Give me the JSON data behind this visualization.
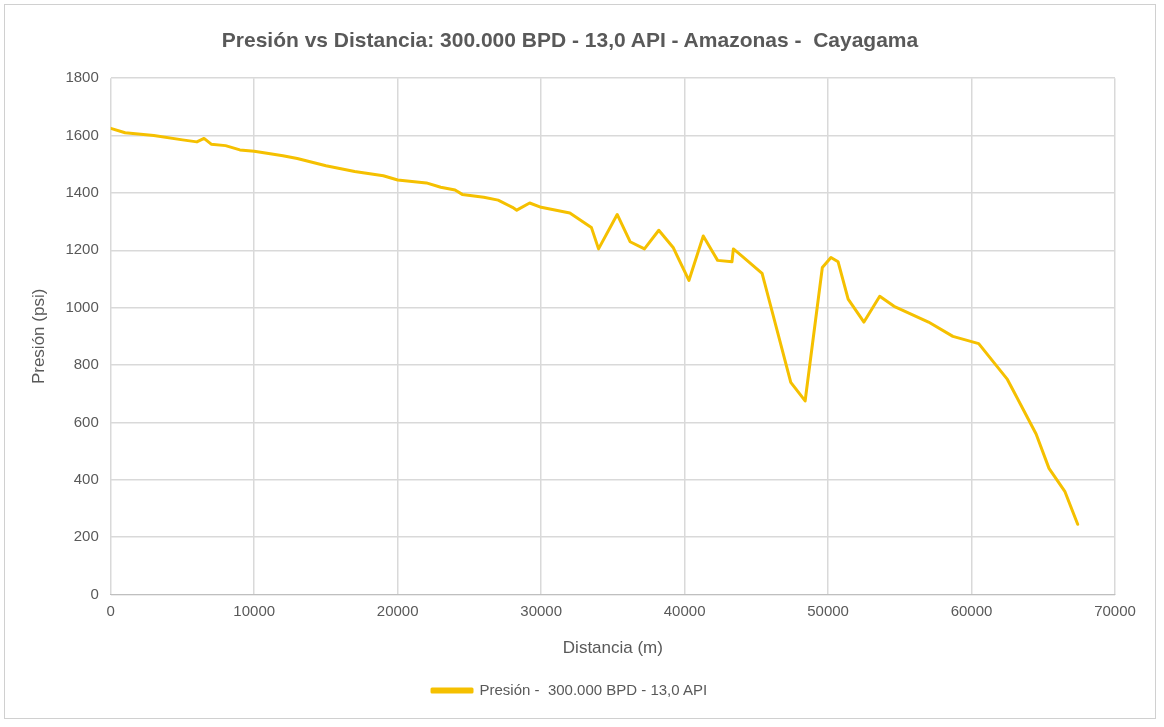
{
  "chart_data": {
    "type": "line",
    "title": "Presión vs Distancia: 300.000 BPD - 13,0 API - Amazonas -  Cayagama",
    "xlabel": "Distancia (m)",
    "ylabel": "Presión (psi)",
    "x": [
      0,
      1000,
      3000,
      5000,
      6000,
      6500,
      7000,
      8000,
      9000,
      10000,
      12000,
      13000,
      15000,
      17000,
      19000,
      20000,
      22000,
      23000,
      24000,
      24500,
      26000,
      27000,
      28000,
      28300,
      29200,
      30000,
      32000,
      33500,
      34000,
      35300,
      36200,
      37200,
      38200,
      39200,
      40300,
      41300,
      42300,
      43300,
      43400,
      44000,
      45400,
      47400,
      48400,
      49600,
      50200,
      50700,
      51400,
      52500,
      53600,
      54600,
      57000,
      58700,
      60500,
      62500,
      64500,
      65400,
      66500,
      67400
    ],
    "series": [
      {
        "name": "Presión -  300.000 BPD - 13,0 API",
        "color": "#f5c000",
        "values": [
          1625,
          1610,
          1600,
          1585,
          1578,
          1590,
          1570,
          1565,
          1550,
          1545,
          1530,
          1520,
          1495,
          1475,
          1460,
          1445,
          1435,
          1420,
          1410,
          1395,
          1385,
          1375,
          1350,
          1340,
          1365,
          1350,
          1330,
          1280,
          1205,
          1325,
          1230,
          1205,
          1270,
          1210,
          1095,
          1250,
          1165,
          1160,
          1205,
          1180,
          1120,
          740,
          675,
          1140,
          1175,
          1160,
          1030,
          950,
          1040,
          1005,
          950,
          900,
          875,
          750,
          560,
          440,
          360,
          245
        ]
      }
    ],
    "xlim": [
      0,
      70000
    ],
    "xticks": [
      0,
      10000,
      20000,
      30000,
      40000,
      50000,
      60000,
      70000
    ],
    "ylim": [
      0,
      1800
    ],
    "yticks": [
      0,
      200,
      400,
      600,
      800,
      1000,
      1200,
      1400,
      1600,
      1800
    ],
    "grid": true,
    "legend": "bottom",
    "marker": "none",
    "line_style": "solid"
  }
}
